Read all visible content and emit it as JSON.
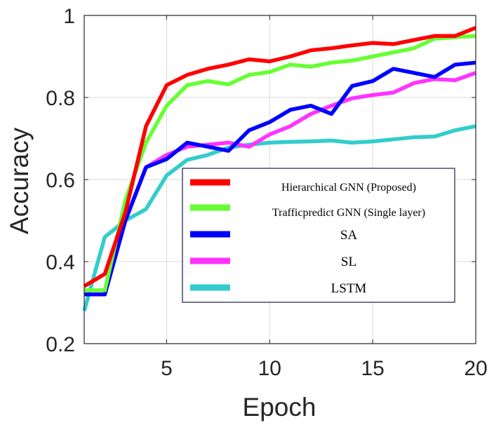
{
  "chart_data": {
    "type": "line",
    "title": "",
    "xlabel": "Epoch",
    "ylabel": "Accuracy",
    "xlim": [
      1,
      20
    ],
    "ylim": [
      0.2,
      1.0
    ],
    "xticks": [
      5,
      10,
      15,
      20
    ],
    "yticks": [
      0.2,
      0.4,
      0.6,
      0.8,
      1.0
    ],
    "xtick_labels": [
      "5",
      "10",
      "15",
      "20"
    ],
    "ytick_labels": [
      "0.2",
      "0.4",
      "0.6",
      "0.8",
      "1"
    ],
    "grid": true,
    "legend_position": "lower-right",
    "x": [
      1,
      2,
      3,
      4,
      5,
      6,
      7,
      8,
      9,
      10,
      11,
      12,
      13,
      14,
      15,
      16,
      17,
      18,
      19,
      20
    ],
    "series": [
      {
        "name": "Hierarchical GNN (Proposed)",
        "color": "#ff0000",
        "values": [
          0.34,
          0.37,
          0.52,
          0.73,
          0.83,
          0.855,
          0.87,
          0.88,
          0.893,
          0.888,
          0.9,
          0.915,
          0.92,
          0.927,
          0.933,
          0.93,
          0.94,
          0.95,
          0.95,
          0.97
        ]
      },
      {
        "name": "Trafficpredict GNN (Single layer)",
        "color": "#66ff33",
        "values": [
          0.33,
          0.33,
          0.55,
          0.69,
          0.78,
          0.83,
          0.84,
          0.832,
          0.855,
          0.862,
          0.88,
          0.875,
          0.885,
          0.89,
          0.9,
          0.91,
          0.92,
          0.943,
          0.947,
          0.95
        ]
      },
      {
        "name": "SA",
        "color": "#0000ff",
        "values": [
          0.32,
          0.32,
          0.5,
          0.63,
          0.65,
          0.69,
          0.68,
          0.67,
          0.72,
          0.74,
          0.77,
          0.78,
          0.76,
          0.828,
          0.84,
          0.87,
          0.86,
          0.85,
          0.88,
          0.885
        ]
      },
      {
        "name": "SL",
        "color": "#ff33ff",
        "values": [
          0.32,
          0.32,
          0.5,
          0.63,
          0.66,
          0.68,
          0.685,
          0.69,
          0.68,
          0.71,
          0.73,
          0.76,
          0.78,
          0.798,
          0.806,
          0.812,
          0.835,
          0.845,
          0.842,
          0.86
        ]
      },
      {
        "name": "LSTM",
        "color": "#33cccc",
        "values": [
          0.28,
          0.46,
          0.5,
          0.528,
          0.61,
          0.648,
          0.66,
          0.678,
          0.685,
          0.69,
          0.692,
          0.693,
          0.695,
          0.69,
          0.693,
          0.698,
          0.703,
          0.705,
          0.72,
          0.73
        ]
      }
    ]
  }
}
